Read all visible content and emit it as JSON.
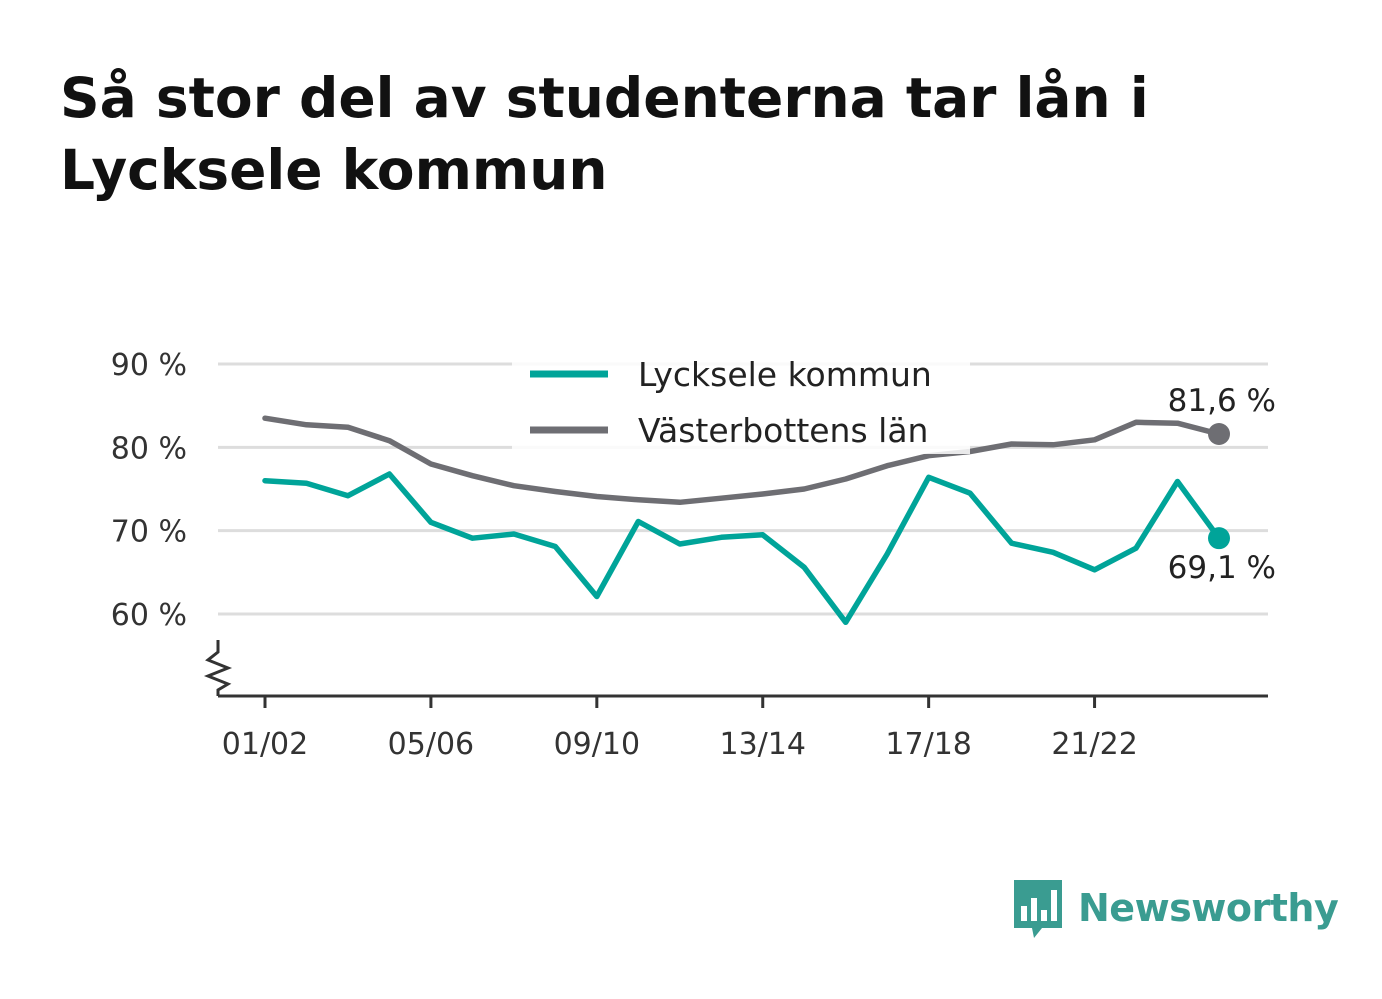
{
  "title": "Så stor del av studenterna tar lån i Lycksele kommun",
  "colors": {
    "lycksele": "#00a499",
    "vasterbotten": "#6e6e73",
    "grid": "#dddddd",
    "axis": "#333333",
    "brand": "#3a9c91"
  },
  "chart_data": {
    "type": "line",
    "x": [
      "01/02",
      "02/03",
      "03/04",
      "04/05",
      "05/06",
      "06/07",
      "07/08",
      "08/09",
      "09/10",
      "10/11",
      "11/12",
      "12/13",
      "13/14",
      "14/15",
      "15/16",
      "16/17",
      "17/18",
      "18/19",
      "19/20",
      "20/21",
      "21/22",
      "22/23",
      "23/24",
      "24/25"
    ],
    "x_tick_labels": [
      "01/02",
      "05/06",
      "09/10",
      "13/14",
      "17/18",
      "21/22"
    ],
    "y_tick_labels": [
      "90 %",
      "80 %",
      "70 %",
      "60 %"
    ],
    "y_ticks": [
      90,
      80,
      70,
      60
    ],
    "ylim": [
      50,
      90
    ],
    "y_axis_break": true,
    "grid": true,
    "legend_position": "top-center",
    "series": [
      {
        "name": "Lycksele kommun",
        "color_key": "lycksele",
        "values": [
          76.0,
          75.7,
          74.2,
          76.8,
          71.0,
          69.1,
          69.6,
          68.1,
          62.1,
          71.1,
          68.4,
          69.2,
          69.5,
          65.6,
          59.0,
          67.2,
          76.4,
          74.5,
          68.5,
          67.4,
          65.3,
          67.9,
          75.9,
          69.1
        ],
        "end_label": "69,1 %"
      },
      {
        "name": "Västerbottens län",
        "color_key": "vasterbotten",
        "values": [
          83.5,
          82.7,
          82.4,
          80.8,
          78.0,
          76.6,
          75.4,
          74.7,
          74.1,
          73.7,
          73.4,
          73.9,
          74.4,
          75.0,
          76.2,
          77.8,
          79.0,
          79.5,
          80.4,
          80.3,
          80.9,
          83.0,
          82.9,
          81.6
        ],
        "end_label": "81,6 %"
      }
    ]
  },
  "logo": {
    "text": "Newsworthy",
    "icon": "bar-chart-speech-bubble-icon"
  }
}
